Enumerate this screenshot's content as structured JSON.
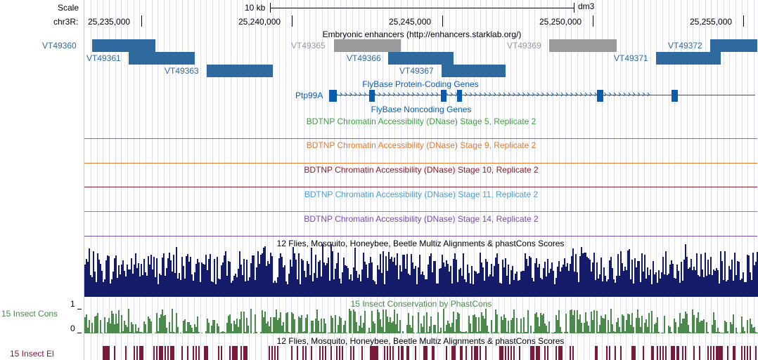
{
  "ruler": {
    "scale_label": "Scale",
    "scale_value": "10 kb",
    "assembly": "dm3",
    "chrom_label": "chr3R:",
    "positions": [
      "25,235,000",
      "25,240,000",
      "25,245,000",
      "25,250,000",
      "25,255,000"
    ]
  },
  "enhancers": {
    "title": "Embryonic enhancers (http://enhancers.starklab.org/)",
    "items": [
      {
        "name": "VT49360",
        "color": "#2e6a9e"
      },
      {
        "name": "VT49361",
        "color": "#2e6a9e"
      },
      {
        "name": "VT49363",
        "color": "#2e6a9e"
      },
      {
        "name": "VT49365",
        "color": "#9a9a9a"
      },
      {
        "name": "VT49366",
        "color": "#2e6a9e"
      },
      {
        "name": "VT49367",
        "color": "#2e6a9e"
      },
      {
        "name": "VT49369",
        "color": "#9a9a9a"
      },
      {
        "name": "VT49371",
        "color": "#2e6a9e"
      },
      {
        "name": "VT49372",
        "color": "#2e6a9e"
      }
    ]
  },
  "genes": {
    "coding_title": "FlyBase Protein-Coding Genes",
    "gene_name": "Ptp99A",
    "noncoding_title": "FlyBase Noncoding Genes",
    "color": "#0b5cad"
  },
  "dnase": [
    {
      "title": "BDTNP Chromatin Accessibility (DNase) Stage 5, Replicate 2",
      "color": "#3aa43a"
    },
    {
      "title": "BDTNP Chromatin Accessibility (DNase) Stage 9, Replicate 2",
      "color": "#e8782a"
    },
    {
      "title": "BDTNP Chromatin Accessibility (DNase) Stage 10, Replicate 2",
      "color": "#8c1c2a"
    },
    {
      "title": "BDTNP Chromatin Accessibility (DNase) Stage 11, Replicate 2",
      "color": "#4aa0d0"
    },
    {
      "title": "BDTNP Chromatin Accessibility (DNase) Stage 14, Replicate 2",
      "color": "#7a4aaa"
    }
  ],
  "multiz": {
    "title": "12 Flies, Mosquito, Honeybee, Beetle Multiz Alignments & phastCons Scores",
    "color": "#141c6a"
  },
  "cons": {
    "side_label": "15 Insect Cons",
    "axis_max": "1",
    "axis_min": "0",
    "title": "15 Insect Conservation by PhastCons",
    "color": "#4a8a4a"
  },
  "elements": {
    "side_label": "15 Insect El",
    "title": "12 Flies, Mosquito, Honeybee, Beetle Multiz Alignments & phastCons Scores",
    "color": "#7a1a3a"
  }
}
